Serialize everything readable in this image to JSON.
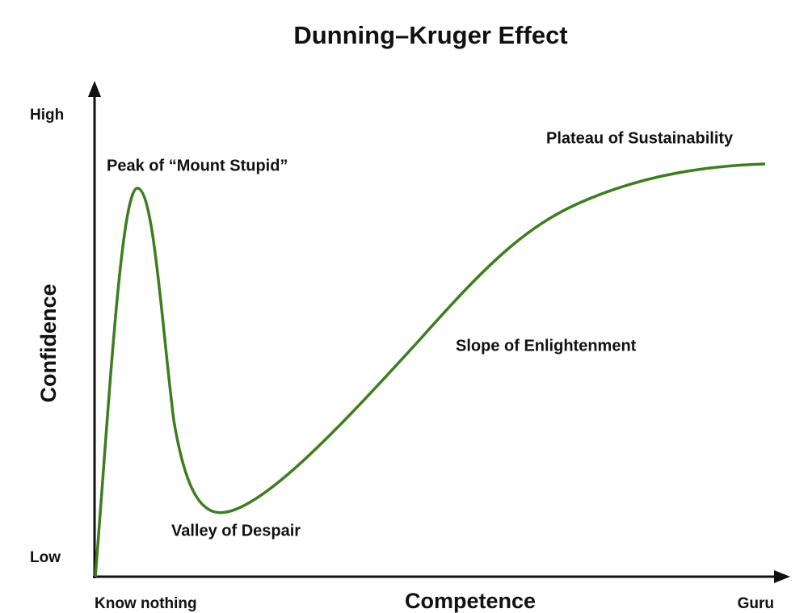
{
  "title": "Dunning–Kruger Effect",
  "y_axis": {
    "label": "Confidence",
    "high": "High",
    "low": "Low"
  },
  "x_axis": {
    "label": "Competence",
    "start": "Know nothing",
    "end": "Guru"
  },
  "annotations": {
    "peak": "Peak of “Mount Stupid”",
    "valley": "Valley of Despair",
    "slope": "Slope of Enlightenment",
    "plateau": "Plateau of Sustainability"
  }
}
